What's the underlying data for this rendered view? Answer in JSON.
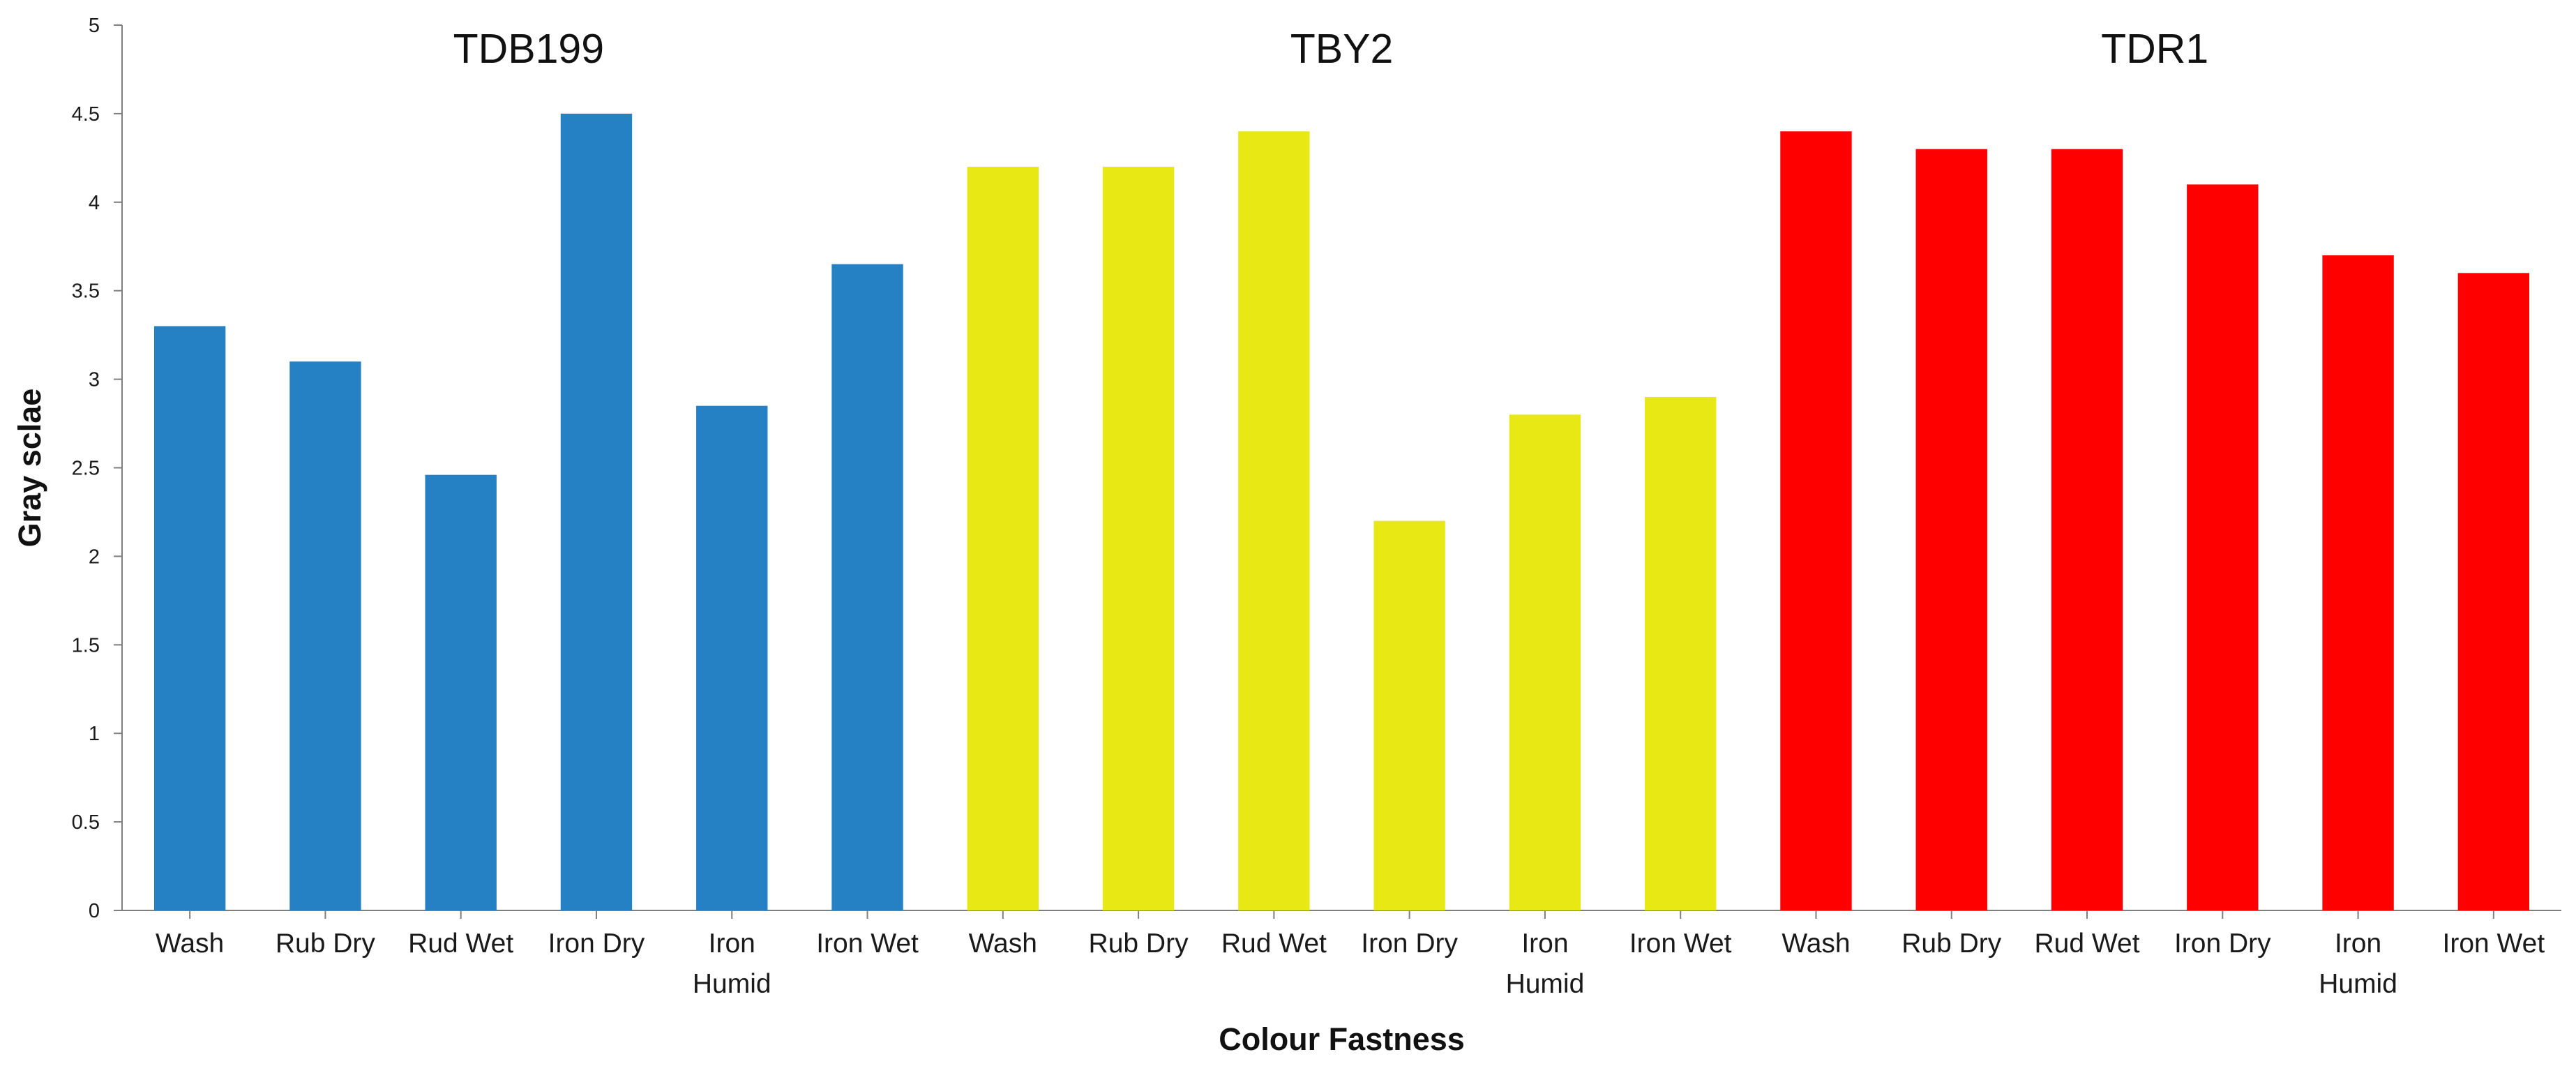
{
  "chart_data": {
    "type": "bar",
    "title": "",
    "xlabel": "Colour Fastness",
    "ylabel": "Gray sclae",
    "ylim": [
      0,
      5
    ],
    "yticks": [
      "0",
      "0.5",
      "1",
      "1.5",
      "2",
      "2.5",
      "3",
      "3.5",
      "4",
      "4.5",
      "5"
    ],
    "grid": false,
    "legend": "none",
    "groups": [
      {
        "name": "TDB199",
        "color": "#2581C4",
        "categories": [
          "Wash",
          "Rub Dry",
          "Rud Wet",
          "Iron Dry",
          "Iron Humid",
          "Iron Wet"
        ],
        "values": [
          3.3,
          3.1,
          2.46,
          4.5,
          2.85,
          3.65
        ]
      },
      {
        "name": "TBY2",
        "color": "#E8E815",
        "categories": [
          "Wash",
          "Rub Dry",
          "Rud Wet",
          "Iron Dry",
          "Iron Humid",
          "Iron Wet"
        ],
        "values": [
          4.2,
          4.2,
          4.4,
          2.2,
          2.8,
          2.9
        ]
      },
      {
        "name": "TDR1",
        "color": "#FF0000",
        "categories": [
          "Wash",
          "Rub Dry",
          "Rud Wet",
          "Iron Dry",
          "Iron Humid",
          "Iron Wet"
        ],
        "values": [
          4.4,
          4.3,
          4.3,
          4.1,
          3.7,
          3.6
        ]
      }
    ]
  }
}
